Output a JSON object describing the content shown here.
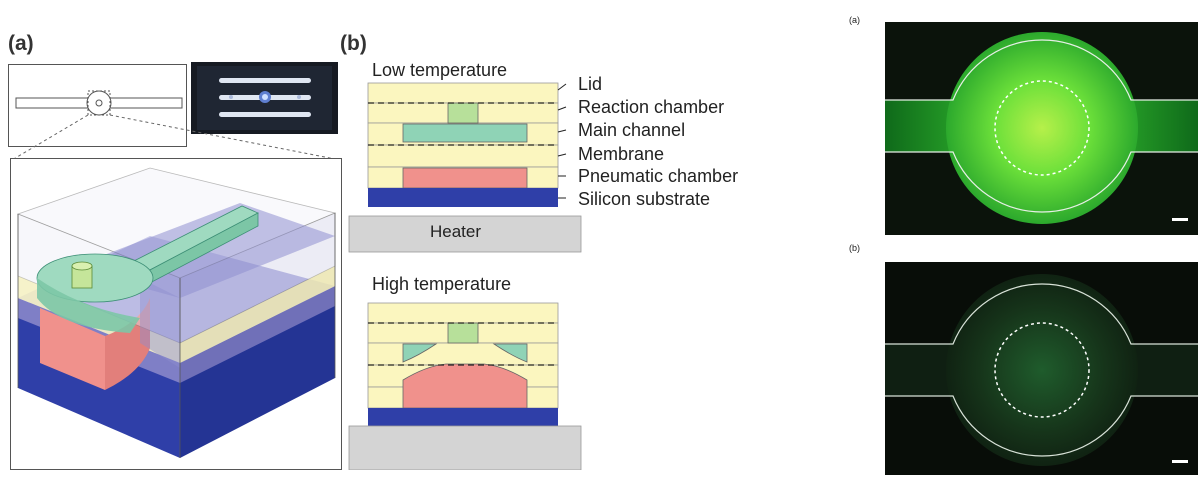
{
  "left_figure": {
    "panel_a_label": "(a)",
    "panel_b_label": "(b)",
    "low_temperature_title": "Low temperature",
    "high_temperature_title": "High temperature",
    "heater_label": "Heater",
    "layer_labels": [
      "Lid",
      "Reaction chamber",
      "Main channel",
      "Membrane",
      "Pneumatic chamber",
      "Silicon substrate"
    ],
    "colors": {
      "lid": "#fbf6bf",
      "reaction_chamber": "#b7e09a",
      "main_channel": "#8fd3b6",
      "pneumatic_chamber": "#f0918c",
      "silicon_substrate": "#2f3fa8",
      "heater": "#d4d4d4"
    }
  },
  "right_figure": {
    "panel_a_label": "(a)",
    "panel_b_label": "(b)",
    "colors": {
      "background": "#0b130b",
      "fluorescence_bright": "#3ee63a",
      "fluorescence_dim": "#1d5a26"
    }
  }
}
